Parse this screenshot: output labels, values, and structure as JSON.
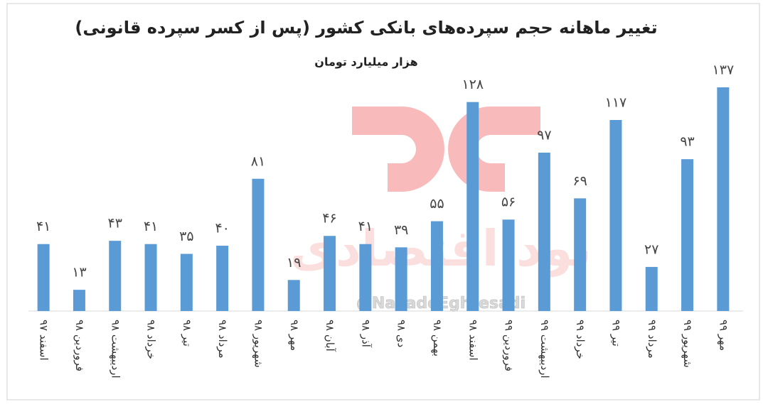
{
  "chart_data": {
    "type": "bar",
    "title": "تغییر ماهانه حجم سپرده‌های بانکی کشور (پس از کسر سپرده قانونی)",
    "subtitle": "هزار میلیارد تومان",
    "categories": [
      "اسفند ۹۷",
      "فروردین ۹۸",
      "اردیبهشت ۹۸",
      "خرداد ۹۸",
      "تیر ۹۸",
      "مرداد ۹۸",
      "شهریور ۹۸",
      "مهر ۹۸",
      "آبان ۹۸",
      "آذر ۹۸",
      "دی ۹۸",
      "بهمن ۹۸",
      "اسفند ۹۸",
      "فروردین ۹۹",
      "اردیبهشت ۹۹",
      "خرداد ۹۹",
      "تیر ۹۹",
      "مرداد ۹۹",
      "شهریور ۹۹",
      "مهر ۹۹"
    ],
    "values": [
      41,
      13,
      43,
      41,
      35,
      40,
      81,
      19,
      46,
      41,
      39,
      55,
      128,
      56,
      97,
      69,
      117,
      27,
      93,
      137
    ],
    "value_labels": [
      "۴۱",
      "۱۳",
      "۴۳",
      "۴۱",
      "۳۵",
      "۴۰",
      "۸۱",
      "۱۹",
      "۴۶",
      "۴۱",
      "۳۹",
      "۵۵",
      "۱۲۸",
      "۵۶",
      "۹۷",
      "۶۹",
      "۱۱۷",
      "۲۷",
      "۹۳",
      "۱۳۷"
    ],
    "color": "#5b9bd5",
    "watermark": "نود اقتصادی",
    "watermark_handle": "@NavadeEghtesadi"
  }
}
